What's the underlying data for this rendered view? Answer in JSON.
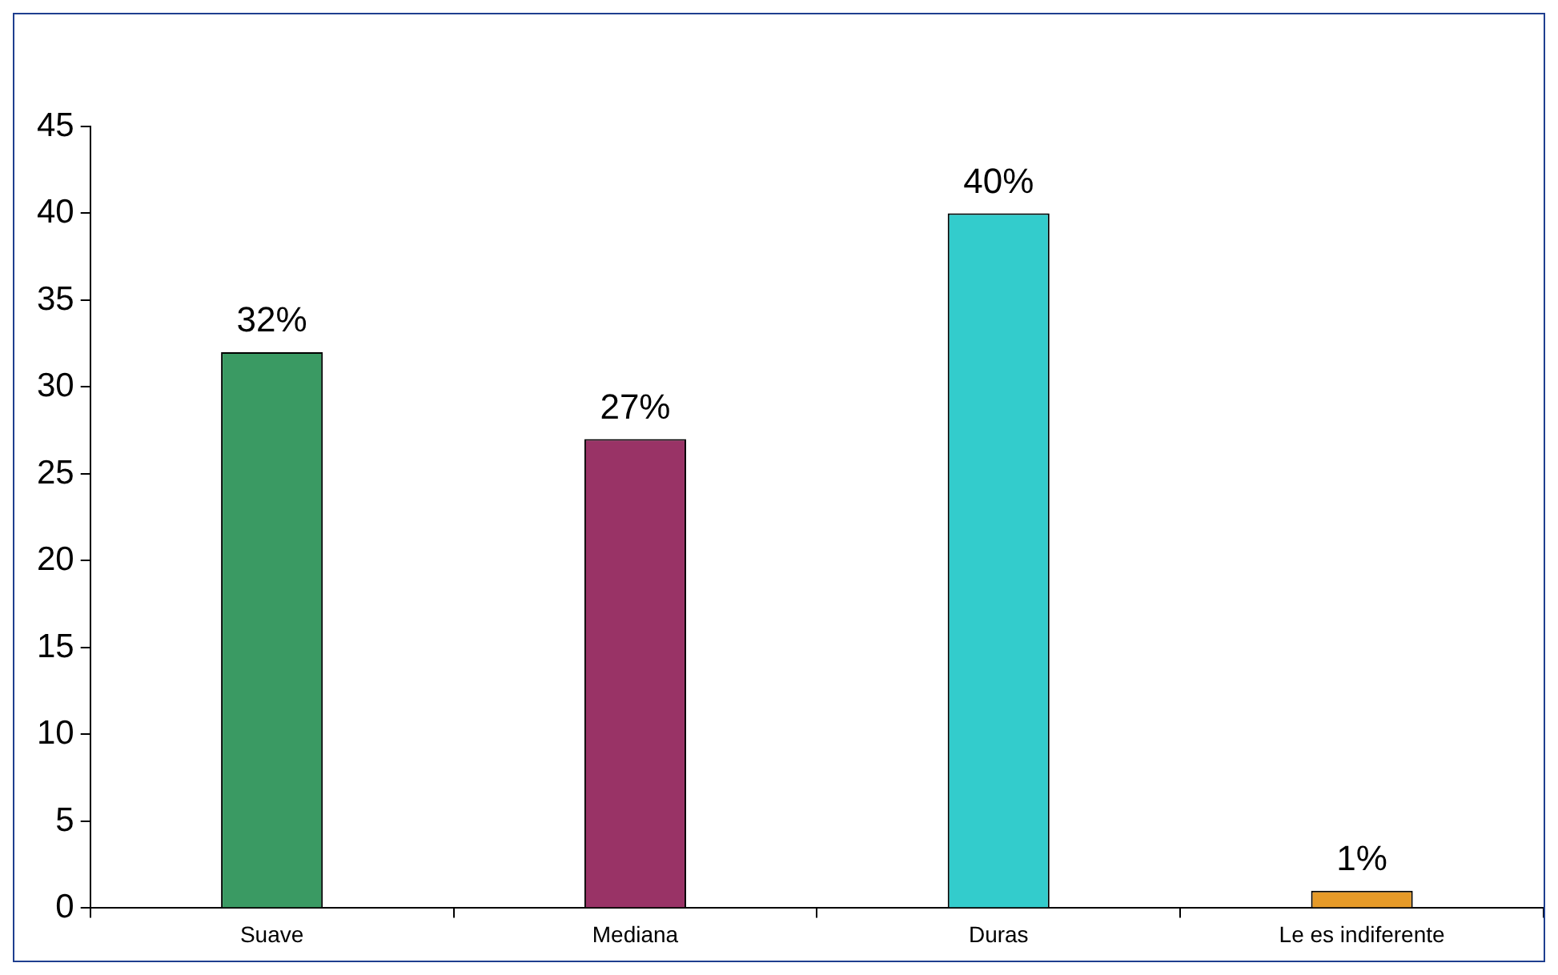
{
  "chart_data": {
    "type": "bar",
    "categories": [
      "Suave",
      "Mediana",
      "Duras",
      "Le es indiferente"
    ],
    "values": [
      32,
      27,
      40,
      1
    ],
    "colors": [
      "#3a9a63",
      "#993366",
      "#33cccc",
      "#e69a28"
    ],
    "value_labels": [
      "32%",
      "27%",
      "40%",
      "1%"
    ],
    "ylim": [
      0,
      45
    ],
    "yticks": [
      0,
      5,
      10,
      15,
      20,
      25,
      30,
      35,
      40,
      45
    ],
    "grid": false,
    "legend": false
  }
}
